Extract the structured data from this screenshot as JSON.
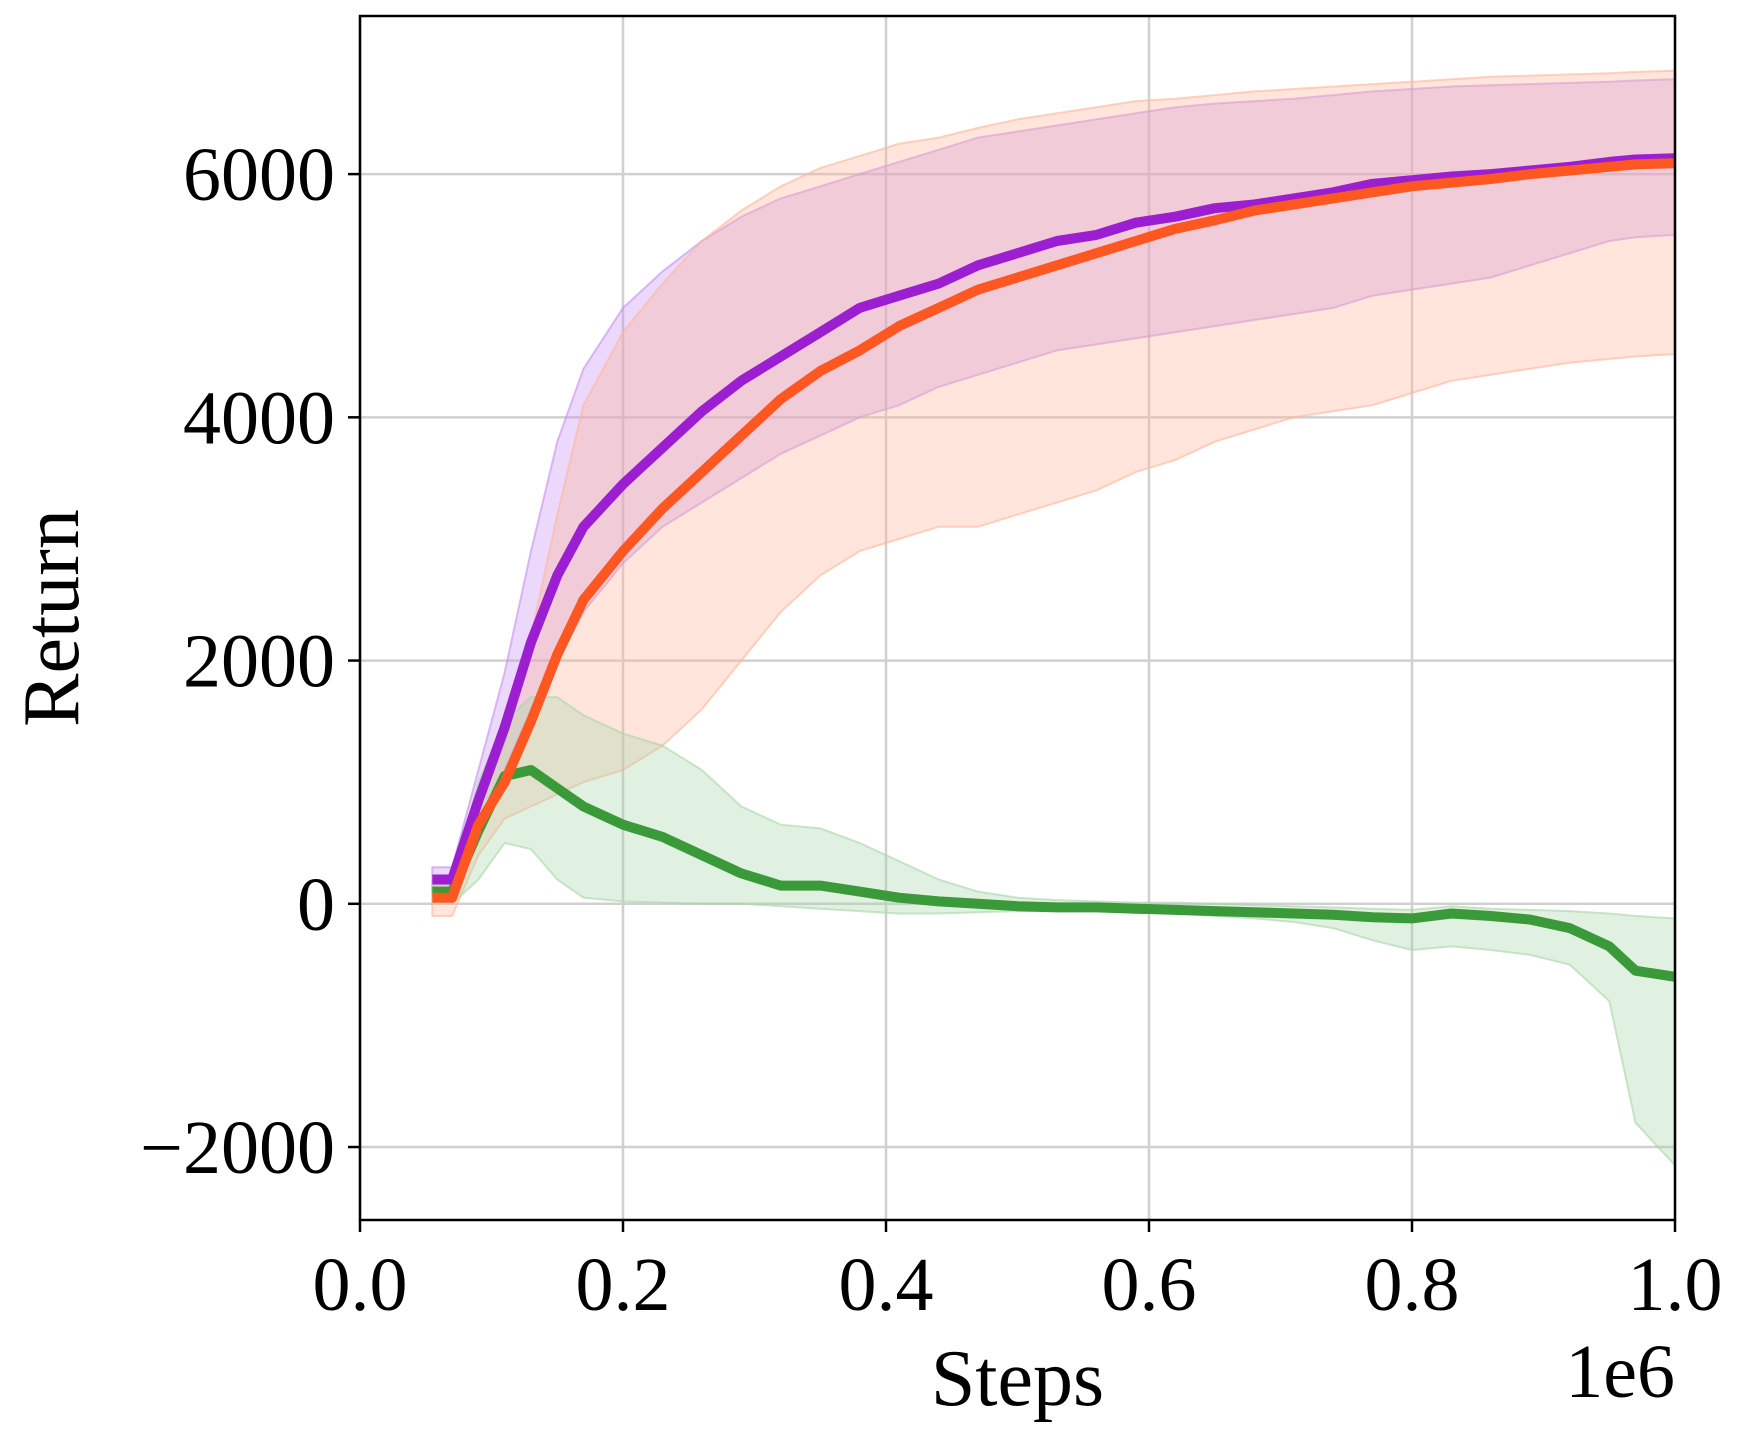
{
  "chart_data": {
    "type": "line",
    "xlabel": "Steps",
    "ylabel": "Return",
    "x_offset_label": "1e6",
    "xlim": [
      0.0,
      1.0
    ],
    "ylim": [
      -2600,
      7300
    ],
    "xticks": [
      0.0,
      0.2,
      0.4,
      0.6,
      0.8,
      1.0
    ],
    "xtick_labels": [
      "0.0",
      "0.2",
      "0.4",
      "0.6",
      "0.8",
      "1.0"
    ],
    "yticks": [
      -2000,
      0,
      2000,
      4000,
      6000
    ],
    "ytick_labels": [
      "−2000",
      "0",
      "2000",
      "4000",
      "6000"
    ],
    "grid": true,
    "x": [
      0.055,
      0.07,
      0.09,
      0.11,
      0.13,
      0.15,
      0.17,
      0.2,
      0.23,
      0.26,
      0.29,
      0.32,
      0.35,
      0.38,
      0.41,
      0.44,
      0.47,
      0.5,
      0.53,
      0.56,
      0.59,
      0.62,
      0.65,
      0.68,
      0.71,
      0.74,
      0.77,
      0.8,
      0.83,
      0.86,
      0.89,
      0.92,
      0.95,
      0.97,
      1.0
    ],
    "series": [
      {
        "color": "#9b1fd1",
        "band_color": "#c58ff0",
        "y": [
          200,
          200,
          850,
          1450,
          2150,
          2700,
          3100,
          3450,
          3750,
          4050,
          4300,
          4500,
          4700,
          4900,
          5000,
          5100,
          5250,
          5350,
          5450,
          5500,
          5600,
          5650,
          5720,
          5750,
          5800,
          5850,
          5920,
          5950,
          5980,
          6000,
          6030,
          6060,
          6100,
          6120,
          6130
        ],
        "lower": [
          100,
          100,
          600,
          1100,
          1600,
          2000,
          2400,
          2800,
          3100,
          3300,
          3500,
          3700,
          3850,
          4000,
          4100,
          4250,
          4350,
          4450,
          4550,
          4600,
          4650,
          4700,
          4750,
          4800,
          4850,
          4900,
          5000,
          5050,
          5100,
          5150,
          5250,
          5350,
          5450,
          5480,
          5500
        ],
        "upper": [
          300,
          300,
          1100,
          1900,
          2900,
          3800,
          4400,
          4900,
          5200,
          5450,
          5650,
          5800,
          5900,
          6000,
          6100,
          6200,
          6300,
          6350,
          6400,
          6450,
          6500,
          6550,
          6580,
          6600,
          6620,
          6650,
          6680,
          6700,
          6720,
          6730,
          6740,
          6750,
          6760,
          6770,
          6780
        ]
      },
      {
        "color": "#ff5722",
        "band_color": "#ffb59a",
        "y": [
          50,
          50,
          650,
          1000,
          1500,
          2050,
          2500,
          2900,
          3250,
          3550,
          3850,
          4150,
          4380,
          4550,
          4750,
          4900,
          5050,
          5150,
          5250,
          5350,
          5450,
          5550,
          5620,
          5700,
          5750,
          5800,
          5850,
          5900,
          5930,
          5960,
          6000,
          6030,
          6060,
          6080,
          6090
        ],
        "lower": [
          -100,
          -100,
          400,
          700,
          800,
          900,
          1000,
          1100,
          1300,
          1600,
          2000,
          2400,
          2700,
          2900,
          3000,
          3100,
          3100,
          3200,
          3300,
          3400,
          3550,
          3650,
          3800,
          3900,
          4000,
          4050,
          4100,
          4200,
          4300,
          4350,
          4400,
          4450,
          4480,
          4500,
          4520
        ],
        "upper": [
          150,
          150,
          800,
          1300,
          2200,
          3200,
          4100,
          4700,
          5100,
          5450,
          5700,
          5900,
          6050,
          6150,
          6250,
          6300,
          6380,
          6450,
          6500,
          6550,
          6600,
          6620,
          6650,
          6680,
          6700,
          6720,
          6740,
          6760,
          6780,
          6800,
          6810,
          6820,
          6830,
          6840,
          6850
        ]
      },
      {
        "color": "#3a9a3a",
        "band_color": "#a9d6a9",
        "y": [
          100,
          100,
          600,
          1050,
          1100,
          950,
          800,
          650,
          550,
          400,
          250,
          150,
          150,
          100,
          50,
          20,
          0,
          -20,
          -30,
          -30,
          -40,
          -50,
          -60,
          -70,
          -80,
          -90,
          -110,
          -120,
          -80,
          -100,
          -130,
          -200,
          -350,
          -550,
          -600
        ],
        "lower": [
          0,
          0,
          200,
          500,
          450,
          200,
          50,
          20,
          10,
          0,
          0,
          -20,
          -40,
          -60,
          -80,
          -80,
          -70,
          -60,
          -60,
          -60,
          -60,
          -80,
          -100,
          -120,
          -150,
          -200,
          -300,
          -380,
          -350,
          -380,
          -420,
          -500,
          -800,
          -1800,
          -2150
        ],
        "upper": [
          200,
          200,
          1000,
          1500,
          1700,
          1700,
          1550,
          1400,
          1300,
          1100,
          800,
          650,
          620,
          500,
          350,
          200,
          100,
          50,
          30,
          20,
          10,
          10,
          0,
          -10,
          -20,
          -30,
          -40,
          -50,
          -20,
          -40,
          -50,
          -60,
          -80,
          -100,
          -120
        ]
      }
    ]
  }
}
